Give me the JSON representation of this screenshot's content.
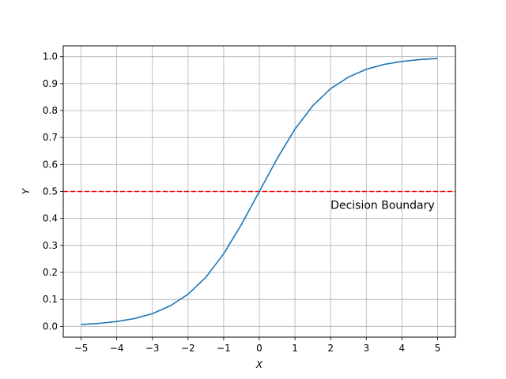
{
  "chart_data": {
    "type": "line",
    "title": "",
    "xlabel": "X",
    "ylabel": "Y",
    "xlim": [
      -5.5,
      5.5
    ],
    "ylim": [
      -0.04,
      1.04
    ],
    "grid": true,
    "xticks": [
      -5,
      -4,
      -3,
      -2,
      -1,
      0,
      1,
      2,
      3,
      4,
      5
    ],
    "xtick_labels": [
      "−5",
      "−4",
      "−3",
      "−2",
      "−1",
      "0",
      "1",
      "2",
      "3",
      "4",
      "5"
    ],
    "yticks": [
      0.0,
      0.1,
      0.2,
      0.3,
      0.4,
      0.5,
      0.6,
      0.7,
      0.8,
      0.9,
      1.0
    ],
    "ytick_labels": [
      "0.0",
      "0.1",
      "0.2",
      "0.3",
      "0.4",
      "0.5",
      "0.6",
      "0.7",
      "0.8",
      "0.9",
      "1.0"
    ],
    "series": [
      {
        "color": "#1f77b4",
        "x": [
          -5,
          -4.5,
          -4,
          -3.5,
          -3,
          -2.5,
          -2,
          -1.5,
          -1,
          -0.5,
          0,
          0.5,
          1,
          1.5,
          2,
          2.5,
          3,
          3.5,
          4,
          4.5,
          5
        ],
        "y": [
          0.007,
          0.011,
          0.018,
          0.029,
          0.047,
          0.076,
          0.119,
          0.182,
          0.269,
          0.378,
          0.5,
          0.622,
          0.731,
          0.818,
          0.881,
          0.924,
          0.953,
          0.971,
          0.982,
          0.989,
          0.993
        ]
      }
    ],
    "reference_lines": [
      {
        "orientation": "horizontal",
        "y": 0.5,
        "style": "dashed",
        "color": "#ff0000"
      }
    ],
    "annotations": [
      {
        "text": "Decision Boundary",
        "x": 2,
        "y": 0.45
      }
    ]
  }
}
